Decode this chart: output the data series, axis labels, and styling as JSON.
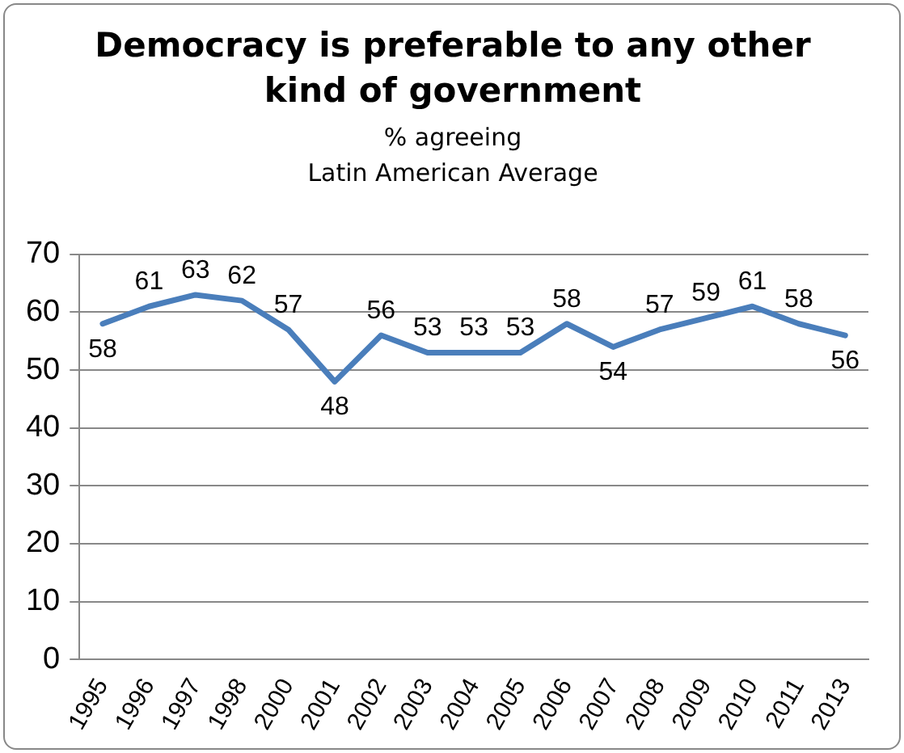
{
  "chart_data": {
    "type": "line",
    "title": "Democracy is preferable to any other kind of government",
    "subtitle": "% agreeing\nLatin American Average",
    "categories": [
      "1995",
      "1996",
      "1997",
      "1998",
      "2000",
      "2001",
      "2002",
      "2003",
      "2004",
      "2005",
      "2006",
      "2007",
      "2008",
      "2009",
      "2010",
      "2011",
      "2013"
    ],
    "series": [
      {
        "color": "#4a7ebb",
        "values": [
          58,
          61,
          63,
          62,
          57,
          48,
          56,
          53,
          53,
          53,
          58,
          54,
          57,
          59,
          61,
          58,
          56
        ]
      }
    ],
    "ylim": [
      0,
      70
    ],
    "yticks": [
      0,
      10,
      20,
      30,
      40,
      50,
      60,
      70
    ],
    "grid": "y",
    "legend": false,
    "marker": "none",
    "line_style": "solid",
    "data_labels": true
  }
}
